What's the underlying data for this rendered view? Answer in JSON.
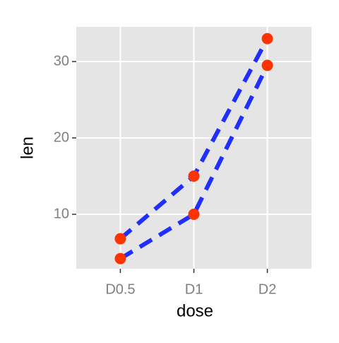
{
  "chart_data": {
    "type": "line",
    "x_label": "dose",
    "y_label": "len",
    "categories": [
      "D0.5",
      "D1",
      "D2"
    ],
    "series": [
      {
        "color": "#1f2fff",
        "values": [
          6.8,
          15,
          33
        ]
      },
      {
        "color": "#1f2fff",
        "values": [
          4.2,
          10,
          29.5
        ]
      }
    ],
    "point_color": "#ff3300",
    "ylim": [
      2.87,
      34.54
    ],
    "yticks": [
      10,
      20,
      30
    ],
    "grid": true
  }
}
